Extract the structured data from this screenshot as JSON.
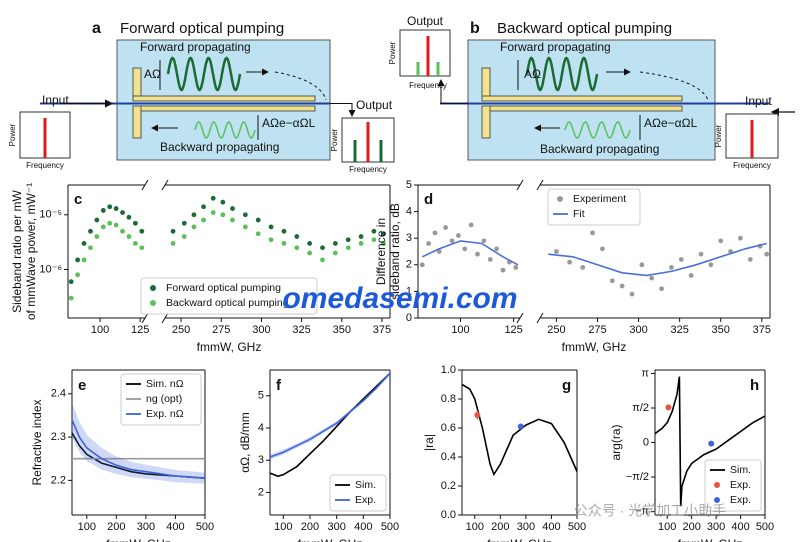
{
  "diagrams": [
    {
      "panel": "a",
      "title": "Forward optical pumping",
      "forward": "Forward propagating",
      "backward": "Backward propagating",
      "amp": "AΩ",
      "amp_decay": "AΩe−αΩL",
      "input": "Input",
      "output": "Output",
      "power": [
        "Power",
        "Power"
      ],
      "frequency": [
        "Frequency",
        "Frequency"
      ]
    },
    {
      "panel": "b",
      "title": "Backward optical pumping",
      "forward": "Forward propagating",
      "backward": "Backward propagating",
      "amp": "AΩ",
      "amp_decay": "AΩe−αΩL",
      "input": "Input",
      "output": "Output",
      "power": [
        "Power",
        "Power"
      ],
      "frequency": [
        "Frequency",
        "Frequency"
      ]
    }
  ],
  "watermarks": [
    "omedasemi.com",
    "公众号 · 光学加工小助手"
  ],
  "chart_data": [
    {
      "type": "scatter",
      "panel": "c",
      "xlabel": "fmmW, GHz",
      "ylabel": [
        "Sideband ratio per mW",
        "of mmWave power, mW⁻¹"
      ],
      "xlim": [
        [
          80,
          128
        ],
        [
          240,
          380
        ]
      ],
      "xticks": [
        [
          100,
          125
        ],
        [
          250,
          275,
          300,
          325,
          350,
          375
        ]
      ],
      "log_y": true,
      "ylim": [
        1.3e-07,
        3.5e-05
      ],
      "yticks": [
        {
          "value": 1e-06,
          "label": "10⁻⁶"
        },
        {
          "value": 1e-05,
          "label": "10⁻⁵"
        }
      ],
      "legend": "lower center",
      "series": [
        {
          "name": "Forward optical pumping",
          "color": "#1b6b34",
          "style": "points",
          "x": [
            82,
            86,
            90,
            94,
            98,
            102,
            106,
            110,
            114,
            118,
            122,
            126,
            245,
            252,
            258,
            264,
            270,
            276,
            282,
            290,
            298,
            306,
            314,
            322,
            330,
            338,
            346,
            354,
            362,
            370,
            376
          ],
          "values": [
            6e-07,
            1.5e-06,
            3e-06,
            5e-06,
            8e-06,
            1.2e-05,
            1.4e-05,
            1.3e-05,
            1.1e-05,
            9e-06,
            7e-06,
            5e-06,
            5e-06,
            7e-06,
            1e-05,
            1.4e-05,
            2e-05,
            1.7e-05,
            1.3e-05,
            1e-05,
            8e-06,
            6e-06,
            5e-06,
            4e-06,
            3e-06,
            2.5e-06,
            3e-06,
            3.5e-06,
            4e-06,
            5e-06,
            4.5e-06
          ]
        },
        {
          "name": "Backward optical pumping",
          "color": "#5bbf5b",
          "style": "points",
          "x": [
            82,
            86,
            90,
            94,
            98,
            102,
            106,
            110,
            114,
            118,
            122,
            126,
            245,
            252,
            258,
            264,
            270,
            276,
            282,
            290,
            298,
            306,
            314,
            322,
            330,
            338,
            346,
            354,
            362,
            370,
            376
          ],
          "values": [
            3e-07,
            8e-07,
            1.5e-06,
            2.5e-06,
            4e-06,
            6e-06,
            7e-06,
            6.5e-06,
            5e-06,
            4e-06,
            3e-06,
            2.5e-06,
            3e-06,
            4e-06,
            6e-06,
            8e-06,
            1.1e-05,
            1e-05,
            8e-06,
            6e-06,
            4.5e-06,
            3.5e-06,
            3e-06,
            2.5e-06,
            2e-06,
            1.5e-06,
            2e-06,
            2.5e-06,
            3e-06,
            3.5e-06,
            3e-06
          ]
        }
      ]
    },
    {
      "type": "scatter",
      "panel": "d",
      "xlabel": "fmmW, GHz",
      "ylabel": [
        "Difference in",
        "sideband ratio, dB"
      ],
      "xlim": [
        [
          80,
          128
        ],
        [
          240,
          380
        ]
      ],
      "xticks": [
        [
          100,
          125
        ],
        [
          250,
          275,
          300,
          325,
          350,
          375
        ]
      ],
      "ylim": [
        0,
        5
      ],
      "yticks": [
        0,
        1,
        2,
        3,
        4,
        5
      ],
      "legend": "upper center",
      "series": [
        {
          "name": "Experiment",
          "color": "#999999",
          "style": "points",
          "x": [
            82,
            85,
            88,
            90,
            93,
            96,
            99,
            102,
            105,
            108,
            111,
            114,
            117,
            120,
            123,
            126,
            250,
            258,
            266,
            272,
            278,
            284,
            290,
            296,
            302,
            308,
            314,
            320,
            326,
            332,
            338,
            344,
            350,
            356,
            362,
            368,
            374,
            378
          ],
          "values": [
            2.0,
            2.8,
            3.2,
            2.5,
            3.4,
            2.9,
            3.1,
            2.6,
            3.5,
            2.4,
            2.9,
            2.2,
            2.6,
            1.8,
            2.1,
            1.9,
            2.5,
            2.1,
            1.9,
            3.2,
            2.6,
            1.4,
            1.2,
            0.9,
            2.0,
            1.5,
            1.1,
            1.9,
            2.2,
            1.6,
            2.4,
            2.0,
            2.9,
            2.5,
            3.0,
            2.2,
            2.7,
            2.4
          ]
        },
        {
          "name": "Fit",
          "color": "#4a6fd6",
          "style": "line",
          "x": [
            82,
            90,
            100,
            110,
            120,
            127,
            245,
            260,
            275,
            290,
            305,
            320,
            335,
            350,
            365,
            378
          ],
          "values": [
            2.3,
            2.6,
            2.9,
            2.8,
            2.3,
            2.0,
            2.4,
            2.3,
            2.0,
            1.7,
            1.6,
            1.75,
            2.0,
            2.3,
            2.6,
            2.8
          ]
        }
      ]
    },
    {
      "type": "line",
      "panel": "e",
      "xlabel": "fmmW, GHz",
      "ylabel": "Refractive index",
      "xlim": [
        50,
        500
      ],
      "xticks": [
        100,
        200,
        300,
        400,
        500
      ],
      "ylim": [
        2.12,
        2.455
      ],
      "yticks": [
        2.2,
        2.3,
        2.4
      ],
      "legend": "upper right",
      "series": [
        {
          "name": "Sim. nΩ",
          "color": "#000000",
          "style": "line",
          "x": [
            50,
            75,
            100,
            150,
            200,
            250,
            300,
            400,
            500
          ],
          "values": [
            2.31,
            2.28,
            2.26,
            2.24,
            2.23,
            2.22,
            2.215,
            2.21,
            2.205
          ]
        },
        {
          "name": "ng (opt)",
          "color": "#999999",
          "style": "line",
          "x": [
            50,
            500
          ],
          "values": [
            2.25,
            2.25
          ]
        },
        {
          "name": "Exp. nΩ",
          "color": "#3e64d8",
          "style": "line",
          "band": true,
          "x": [
            50,
            75,
            100,
            150,
            200,
            250,
            300,
            400,
            500
          ],
          "values": [
            2.34,
            2.3,
            2.275,
            2.25,
            2.235,
            2.225,
            2.22,
            2.21,
            2.205
          ],
          "error": [
            0.04,
            0.035,
            0.03,
            0.025,
            0.02,
            0.018,
            0.016,
            0.014,
            0.013
          ]
        }
      ]
    },
    {
      "type": "line",
      "panel": "f",
      "xlabel": "fmmW, GHz",
      "ylabel": "αΩ, dB/mm",
      "xlim": [
        50,
        500
      ],
      "xticks": [
        100,
        200,
        300,
        400,
        500
      ],
      "ylim": [
        1.3,
        5.8
      ],
      "yticks": [
        2,
        3,
        4,
        5
      ],
      "legend": "lower right",
      "series": [
        {
          "name": "Sim.",
          "color": "#000000",
          "style": "line",
          "x": [
            50,
            80,
            100,
            150,
            200,
            250,
            300,
            350,
            400,
            450,
            500
          ],
          "values": [
            2.6,
            2.5,
            2.55,
            2.8,
            3.2,
            3.6,
            4.05,
            4.5,
            4.9,
            5.3,
            5.7
          ]
        },
        {
          "name": "Exp.",
          "color": "#3e64d8",
          "style": "line",
          "band": true,
          "x": [
            50,
            100,
            150,
            200,
            250,
            300,
            350,
            400,
            450,
            500
          ],
          "values": [
            3.1,
            3.25,
            3.45,
            3.65,
            3.9,
            4.15,
            4.5,
            4.85,
            5.25,
            5.7
          ],
          "error": [
            0.08,
            0.08,
            0.07,
            0.07,
            0.06,
            0.06,
            0.05,
            0.05,
            0.05,
            0.05
          ]
        }
      ]
    },
    {
      "type": "line",
      "panel": "g",
      "xlabel": "fmmW, GHz",
      "ylabel": "|ra|",
      "xlim": [
        50,
        500
      ],
      "xticks": [
        100,
        200,
        300,
        400,
        500
      ],
      "ylim": [
        0,
        1
      ],
      "yticks": [
        {
          "value": 0,
          "label": "0.0"
        },
        0.2,
        0.4,
        0.6,
        0.8,
        {
          "value": 1,
          "label": "1.0"
        }
      ],
      "series": [
        {
          "color": "#000000",
          "style": "line",
          "x": [
            50,
            80,
            100,
            130,
            160,
            175,
            200,
            250,
            300,
            350,
            400,
            450,
            500
          ],
          "values": [
            0.9,
            0.87,
            0.8,
            0.6,
            0.35,
            0.28,
            0.35,
            0.55,
            0.62,
            0.66,
            0.63,
            0.5,
            0.3
          ]
        },
        {
          "color": "#e8553f",
          "style": "points",
          "x": [
            110
          ],
          "values": [
            0.69
          ],
          "error": [
            0.03
          ]
        },
        {
          "color": "#3e64d8",
          "style": "points",
          "x": [
            280
          ],
          "values": [
            0.61
          ],
          "error": [
            0.01
          ]
        }
      ]
    },
    {
      "type": "line",
      "panel": "h",
      "xlabel": "fmmW, GHz",
      "ylabel": "arg(ra)",
      "xlim": [
        50,
        500
      ],
      "xticks": [
        100,
        200,
        300,
        400,
        500
      ],
      "ylim": [
        -3.3,
        3.3
      ],
      "yticks": [
        {
          "value": -3.14159,
          "label": "−π"
        },
        {
          "value": -1.5708,
          "label": "−π/2"
        },
        0,
        {
          "value": 1.5708,
          "label": "π/2"
        },
        {
          "value": 3.14159,
          "label": "π"
        }
      ],
      "legend": "lower right",
      "series": [
        {
          "name": "Sim.",
          "color": "#000000",
          "style": "line",
          "x": [
            50,
            80,
            100,
            120,
            140,
            150,
            155,
            160,
            180,
            200,
            250,
            300,
            350,
            400,
            450,
            500
          ],
          "values": [
            0.4,
            0.65,
            0.9,
            1.4,
            2.2,
            3.0,
            -2.9,
            -2.0,
            -1.3,
            -0.95,
            -0.55,
            -0.3,
            0.1,
            0.5,
            0.9,
            1.2
          ]
        },
        {
          "name": "Exp.",
          "color": "#e8553f",
          "style": "points",
          "x": [
            105
          ],
          "values": [
            1.6
          ],
          "error": [
            0.1
          ]
        },
        {
          "name": "Exp.",
          "color": "#3e64d8",
          "style": "points",
          "x": [
            280
          ],
          "values": [
            -0.05
          ],
          "error": [
            0.05
          ]
        }
      ]
    }
  ]
}
